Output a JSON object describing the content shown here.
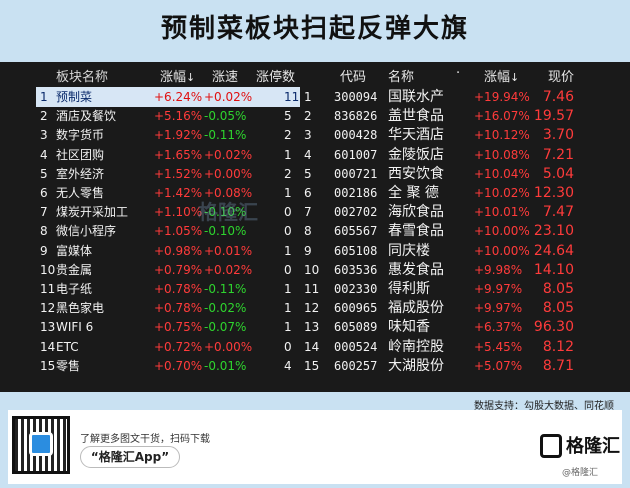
{
  "title": "预制菜板块扫起反弹大旗",
  "left_table": {
    "headers": {
      "name": "板块名称",
      "change": "涨幅",
      "speed": "涨速",
      "limit": "涨停数",
      "sort_arrow": "↓"
    },
    "rows": [
      {
        "idx": "1",
        "name": "预制菜",
        "change": "+6.24%",
        "speed": "+0.02%",
        "limit": "11",
        "speed_dir": "up"
      },
      {
        "idx": "2",
        "name": "酒店及餐饮",
        "change": "+5.16%",
        "speed": "-0.05%",
        "limit": "5",
        "speed_dir": "down"
      },
      {
        "idx": "3",
        "name": "数字货币",
        "change": "+1.92%",
        "speed": "-0.11%",
        "limit": "2",
        "speed_dir": "down"
      },
      {
        "idx": "4",
        "name": "社区团购",
        "change": "+1.65%",
        "speed": "+0.02%",
        "limit": "1",
        "speed_dir": "up"
      },
      {
        "idx": "5",
        "name": "室外经济",
        "change": "+1.52%",
        "speed": "+0.00%",
        "limit": "2",
        "speed_dir": "up"
      },
      {
        "idx": "6",
        "name": "无人零售",
        "change": "+1.42%",
        "speed": "+0.08%",
        "limit": "1",
        "speed_dir": "up"
      },
      {
        "idx": "7",
        "name": "煤炭开采加工",
        "change": "+1.10%",
        "speed": "-0.10%",
        "limit": "0",
        "speed_dir": "down"
      },
      {
        "idx": "8",
        "name": "微信小程序",
        "change": "+1.05%",
        "speed": "-0.10%",
        "limit": "0",
        "speed_dir": "down"
      },
      {
        "idx": "9",
        "name": "富媒体",
        "change": "+0.98%",
        "speed": "+0.01%",
        "limit": "1",
        "speed_dir": "up"
      },
      {
        "idx": "10",
        "name": "贵金属",
        "change": "+0.79%",
        "speed": "+0.02%",
        "limit": "0",
        "speed_dir": "up"
      },
      {
        "idx": "11",
        "name": "电子纸",
        "change": "+0.78%",
        "speed": "-0.11%",
        "limit": "1",
        "speed_dir": "down"
      },
      {
        "idx": "12",
        "name": "黑色家电",
        "change": "+0.78%",
        "speed": "-0.02%",
        "limit": "1",
        "speed_dir": "down"
      },
      {
        "idx": "13",
        "name": "WIFI 6",
        "change": "+0.75%",
        "speed": "-0.07%",
        "limit": "1",
        "speed_dir": "down"
      },
      {
        "idx": "14",
        "name": "ETC",
        "change": "+0.72%",
        "speed": "+0.00%",
        "limit": "0",
        "speed_dir": "up"
      },
      {
        "idx": "15",
        "name": "零售",
        "change": "+0.70%",
        "speed": "-0.01%",
        "limit": "4",
        "speed_dir": "down"
      }
    ]
  },
  "right_table": {
    "headers": {
      "code": "代码",
      "name": "名称",
      "dot": "·",
      "change": "涨幅",
      "price": "现价",
      "sort_arrow": "↓"
    },
    "rows": [
      {
        "idx": "1",
        "code": "300094",
        "name": "国联水产",
        "change": "+19.94%",
        "price": "7.46"
      },
      {
        "idx": "2",
        "code": "836826",
        "name": "盖世食品",
        "change": "+16.07%",
        "price": "19.57"
      },
      {
        "idx": "3",
        "code": "000428",
        "name": "华天酒店",
        "change": "+10.12%",
        "price": "3.70"
      },
      {
        "idx": "4",
        "code": "601007",
        "name": "金陵饭店",
        "change": "+10.08%",
        "price": "7.21"
      },
      {
        "idx": "5",
        "code": "000721",
        "name": "西安饮食",
        "change": "+10.04%",
        "price": "5.04"
      },
      {
        "idx": "6",
        "code": "002186",
        "name": "全 聚 德",
        "change": "+10.02%",
        "price": "12.30"
      },
      {
        "idx": "7",
        "code": "002702",
        "name": "海欣食品",
        "change": "+10.01%",
        "price": "7.47"
      },
      {
        "idx": "8",
        "code": "605567",
        "name": "春雪食品",
        "change": "+10.00%",
        "price": "23.10"
      },
      {
        "idx": "9",
        "code": "605108",
        "name": "同庆楼",
        "change": "+10.00%",
        "price": "24.64"
      },
      {
        "idx": "10",
        "code": "603536",
        "name": "惠发食品",
        "change": "+9.98%",
        "price": "14.10"
      },
      {
        "idx": "11",
        "code": "002330",
        "name": "得利斯",
        "change": "+9.97%",
        "price": "8.05"
      },
      {
        "idx": "12",
        "code": "600965",
        "name": "福成股份",
        "change": "+9.97%",
        "price": "8.05"
      },
      {
        "idx": "13",
        "code": "605089",
        "name": "味知香",
        "change": "+6.37%",
        "price": "96.30"
      },
      {
        "idx": "14",
        "code": "000524",
        "name": "岭南控股",
        "change": "+5.45%",
        "price": "8.12"
      },
      {
        "idx": "15",
        "code": "600257",
        "name": "大湖股份",
        "change": "+5.07%",
        "price": "8.71"
      }
    ]
  },
  "source": "数据支持：勾股大数据、同花顺",
  "footer": {
    "scan_text": "了解更多图文干货，扫码下载",
    "app_name": "“格隆汇App”",
    "logo_text": "格隆汇",
    "watermark_text": "格隆汇",
    "watermark_small": "@格隆汇"
  },
  "colors": {
    "up": "#ff3b3b",
    "down": "#2ed42e",
    "panel": "#1a1a1a",
    "selected": "#d7e6f5",
    "background": "#c9e1f2"
  }
}
